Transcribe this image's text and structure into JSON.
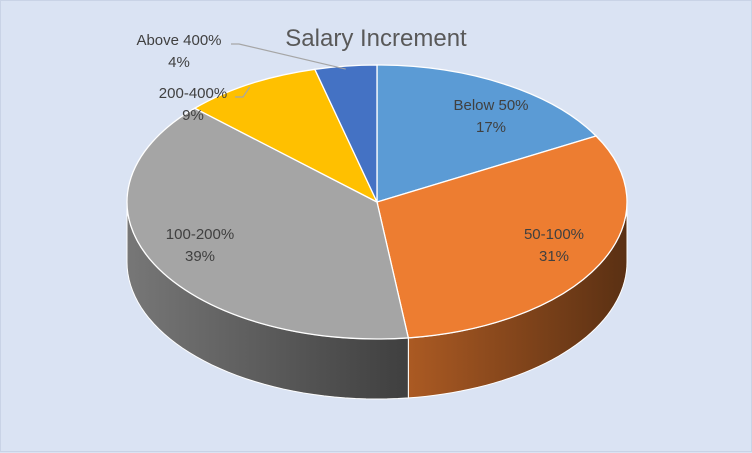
{
  "chart_data": {
    "type": "pie",
    "title": "Salary Increment",
    "categories": [
      "Below 50%",
      "50-100%",
      "100-200%",
      "200-400%",
      "Above 400%"
    ],
    "values": [
      17,
      31,
      39,
      9,
      4
    ],
    "value_labels": [
      "17%",
      "31%",
      "39%",
      "9%",
      "4%"
    ],
    "colors": [
      "#5b9bd5",
      "#ed7d31",
      "#a5a5a5",
      "#ffc000",
      "#4472c4"
    ],
    "style": "3d",
    "legend": "none",
    "label_position": "inside/outside with leader lines"
  }
}
